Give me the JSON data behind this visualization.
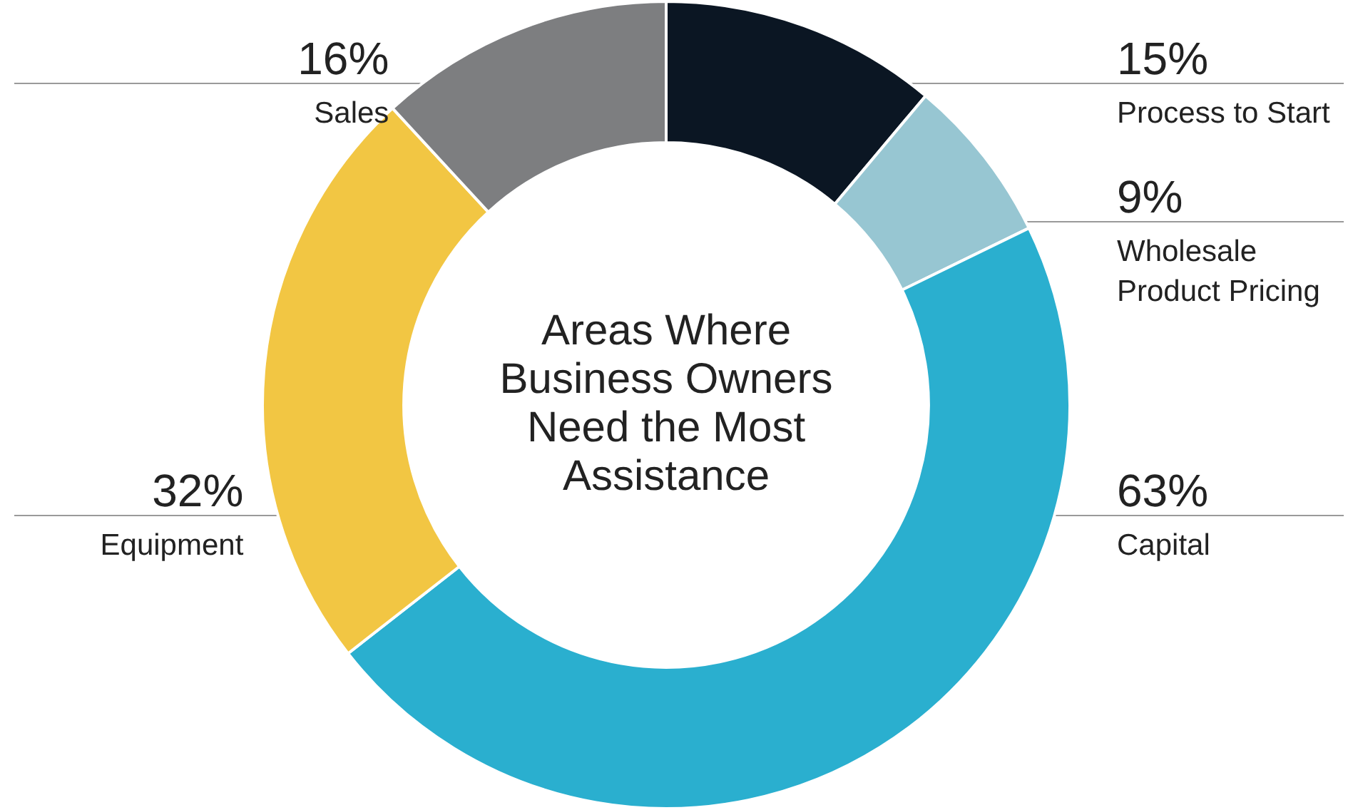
{
  "chart_data": {
    "type": "donut",
    "title": "Areas Where Business Owners Need the Most Assistance",
    "categories": [
      "Process to Start",
      "Wholesale Product Pricing",
      "Capital",
      "Equipment",
      "Sales"
    ],
    "values": [
      15,
      9,
      63,
      32,
      16
    ],
    "value_labels": [
      "15%",
      "9%",
      "63%",
      "32%",
      "16%"
    ],
    "colors": [
      "#0b1623",
      "#97c6d2",
      "#2aafcf",
      "#f2c643",
      "#7d7e80"
    ],
    "legend": false
  }
}
